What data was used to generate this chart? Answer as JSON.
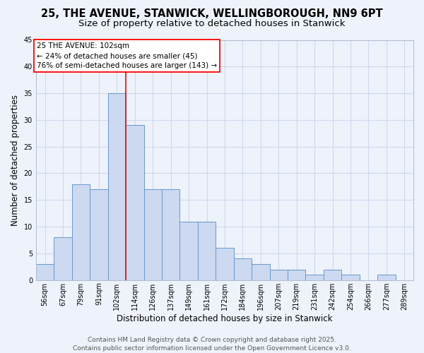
{
  "title_line1": "25, THE AVENUE, STANWICK, WELLINGBOROUGH, NN9 6PT",
  "title_line2": "Size of property relative to detached houses in Stanwick",
  "xlabel": "Distribution of detached houses by size in Stanwick",
  "ylabel": "Number of detached properties",
  "categories": [
    "56sqm",
    "67sqm",
    "79sqm",
    "91sqm",
    "102sqm",
    "114sqm",
    "126sqm",
    "137sqm",
    "149sqm",
    "161sqm",
    "172sqm",
    "184sqm",
    "196sqm",
    "207sqm",
    "219sqm",
    "231sqm",
    "242sqm",
    "254sqm",
    "266sqm",
    "277sqm",
    "289sqm"
  ],
  "values": [
    3,
    8,
    18,
    17,
    35,
    29,
    17,
    17,
    11,
    11,
    6,
    4,
    3,
    2,
    2,
    1,
    2,
    1,
    0,
    1,
    0
  ],
  "bar_color": "#ccd9f0",
  "bar_edge_color": "#6699cc",
  "highlight_line_index": 4,
  "annotation_text_line1": "25 THE AVENUE: 102sqm",
  "annotation_text_line2": "← 24% of detached houses are smaller (45)",
  "annotation_text_line3": "76% of semi-detached houses are larger (143) →",
  "annotation_box_color": "white",
  "annotation_box_edge": "red",
  "ylim": [
    0,
    45
  ],
  "yticks": [
    0,
    5,
    10,
    15,
    20,
    25,
    30,
    35,
    40,
    45
  ],
  "footer_line1": "Contains HM Land Registry data © Crown copyright and database right 2025.",
  "footer_line2": "Contains public sector information licensed under the Open Government Licence v3.0.",
  "bg_color": "#eef2fb",
  "grid_color": "#d0d8ee",
  "title_fontsize": 10.5,
  "subtitle_fontsize": 9.5,
  "axis_label_fontsize": 8.5,
  "tick_fontsize": 7,
  "annotation_fontsize": 7.5,
  "footer_fontsize": 6.5
}
